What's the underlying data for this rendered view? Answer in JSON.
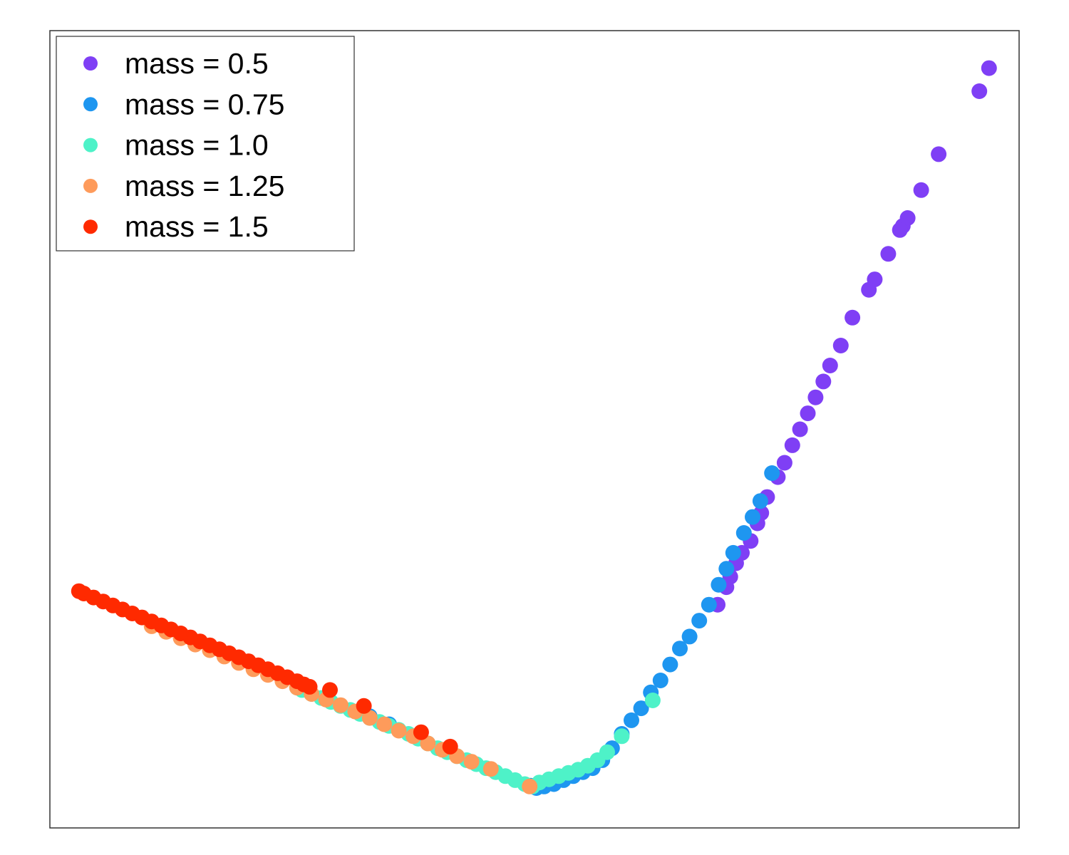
{
  "chart_data": {
    "type": "scatter",
    "title": "",
    "xlabel": "",
    "ylabel": "",
    "axes_visible": false,
    "grid": false,
    "legend_position": "top-left",
    "xlim": [
      0,
      100
    ],
    "ylim": [
      0,
      100
    ],
    "series": [
      {
        "name": "mass = 0.5",
        "color": "#7f3ff5",
        "points": [
          [
            96.9,
            95.3
          ],
          [
            95.9,
            92.4
          ],
          [
            91.7,
            84.5
          ],
          [
            89.9,
            80.0
          ],
          [
            88.5,
            76.5
          ],
          [
            88.0,
            75.5
          ],
          [
            87.7,
            75.0
          ],
          [
            86.5,
            72.0
          ],
          [
            85.1,
            68.8
          ],
          [
            84.5,
            67.5
          ],
          [
            82.8,
            64.0
          ],
          [
            81.6,
            60.5
          ],
          [
            80.5,
            58.0
          ],
          [
            79.8,
            56.0
          ],
          [
            79.0,
            54.0
          ],
          [
            78.2,
            52.0
          ],
          [
            77.4,
            50.0
          ],
          [
            76.6,
            48.0
          ],
          [
            75.8,
            45.8
          ],
          [
            75.1,
            44.0
          ],
          [
            74.0,
            41.5
          ],
          [
            73.4,
            39.5
          ],
          [
            73.0,
            38.2
          ],
          [
            72.3,
            36.0
          ],
          [
            71.4,
            34.5
          ],
          [
            70.8,
            33.2
          ],
          [
            70.2,
            31.5
          ],
          [
            69.8,
            30.2
          ],
          [
            68.9,
            28.0
          ]
        ]
      },
      {
        "name": "mass = 0.75",
        "color": "#1e96f0",
        "points": [
          [
            74.5,
            44.5
          ],
          [
            73.3,
            41.0
          ],
          [
            72.5,
            39.0
          ],
          [
            71.6,
            37.0
          ],
          [
            70.5,
            34.5
          ],
          [
            69.8,
            32.5
          ],
          [
            69.0,
            30.5
          ],
          [
            68.0,
            28.0
          ],
          [
            67.0,
            26.0
          ],
          [
            66.0,
            24.0
          ],
          [
            65.0,
            22.5
          ],
          [
            64.0,
            20.5
          ],
          [
            63.0,
            18.5
          ],
          [
            62.0,
            17.0
          ],
          [
            61.0,
            15.0
          ],
          [
            60.0,
            13.5
          ],
          [
            59.0,
            11.8
          ],
          [
            58.0,
            10.0
          ],
          [
            57.0,
            8.5
          ],
          [
            56.0,
            7.5
          ],
          [
            55.0,
            7.0
          ],
          [
            54.0,
            6.5
          ],
          [
            53.0,
            6.0
          ],
          [
            52.0,
            5.5
          ],
          [
            51.0,
            5.2
          ],
          [
            50.2,
            5.0
          ],
          [
            49.6,
            5.3
          ],
          [
            35.0,
            13.0
          ],
          [
            33.0,
            14.0
          ]
        ]
      },
      {
        "name": "mass = 1.0",
        "color": "#4ef2c8",
        "points": [
          [
            62.2,
            16.0
          ],
          [
            59.0,
            11.5
          ],
          [
            57.5,
            9.5
          ],
          [
            56.5,
            8.5
          ],
          [
            55.5,
            7.8
          ],
          [
            54.5,
            7.3
          ],
          [
            53.5,
            6.9
          ],
          [
            52.5,
            6.5
          ],
          [
            51.5,
            6.1
          ],
          [
            50.5,
            5.7
          ],
          [
            49.8,
            5.2
          ],
          [
            49.0,
            5.5
          ],
          [
            48.0,
            6.0
          ],
          [
            47.0,
            6.5
          ],
          [
            46.0,
            7.0
          ],
          [
            45.0,
            7.5
          ],
          [
            44.0,
            8.0
          ],
          [
            43.0,
            8.5
          ],
          [
            42.0,
            9.0
          ],
          [
            41.0,
            9.5
          ],
          [
            40.0,
            10.0
          ],
          [
            39.0,
            10.6
          ],
          [
            38.0,
            11.2
          ],
          [
            37.0,
            11.8
          ],
          [
            36.0,
            12.3
          ],
          [
            35.0,
            12.8
          ],
          [
            34.0,
            13.3
          ],
          [
            33.0,
            13.8
          ],
          [
            32.0,
            14.3
          ],
          [
            31.0,
            14.8
          ],
          [
            30.0,
            15.3
          ],
          [
            29.0,
            15.8
          ],
          [
            28.0,
            16.3
          ],
          [
            27.0,
            16.8
          ],
          [
            26.0,
            17.3
          ],
          [
            25.5,
            17.6
          ]
        ]
      },
      {
        "name": "mass = 1.25",
        "color": "#fe9b5b",
        "points": [
          [
            49.5,
            5.2
          ],
          [
            45.5,
            7.4
          ],
          [
            43.5,
            8.3
          ],
          [
            42.0,
            9.0
          ],
          [
            40.5,
            9.8
          ],
          [
            39.0,
            10.6
          ],
          [
            37.5,
            11.5
          ],
          [
            36.0,
            12.2
          ],
          [
            34.5,
            13.0
          ],
          [
            33.0,
            13.8
          ],
          [
            31.5,
            14.6
          ],
          [
            30.0,
            15.4
          ],
          [
            28.5,
            16.1
          ],
          [
            27.0,
            16.8
          ],
          [
            25.5,
            17.6
          ],
          [
            24.0,
            18.4
          ],
          [
            22.5,
            19.2
          ],
          [
            21.0,
            19.9
          ],
          [
            19.5,
            20.7
          ],
          [
            18.0,
            21.5
          ],
          [
            16.5,
            22.3
          ],
          [
            15.0,
            23.0
          ],
          [
            13.5,
            23.8
          ],
          [
            12.0,
            24.6
          ],
          [
            10.5,
            25.3
          ]
        ]
      },
      {
        "name": "mass = 1.5",
        "color": "#ff2a00",
        "points": [
          [
            41.3,
            10.2
          ],
          [
            38.3,
            12.0
          ],
          [
            32.4,
            15.3
          ],
          [
            28.9,
            17.3
          ],
          [
            26.2,
            18.0
          ],
          [
            25.5,
            18.4
          ],
          [
            24.5,
            18.9
          ],
          [
            23.5,
            19.4
          ],
          [
            22.5,
            19.9
          ],
          [
            21.5,
            20.4
          ],
          [
            20.5,
            20.9
          ],
          [
            19.5,
            21.4
          ],
          [
            18.5,
            21.9
          ],
          [
            17.5,
            22.4
          ],
          [
            16.5,
            22.9
          ],
          [
            15.5,
            23.4
          ],
          [
            14.5,
            23.9
          ],
          [
            13.5,
            24.4
          ],
          [
            12.5,
            24.9
          ],
          [
            11.5,
            25.4
          ],
          [
            10.5,
            25.9
          ],
          [
            9.5,
            26.4
          ],
          [
            8.5,
            26.9
          ],
          [
            7.5,
            27.4
          ],
          [
            6.5,
            27.9
          ],
          [
            5.5,
            28.4
          ],
          [
            4.5,
            28.9
          ],
          [
            3.5,
            29.4
          ],
          [
            3.0,
            29.7
          ],
          [
            26.8,
            17.7
          ]
        ]
      }
    ]
  }
}
